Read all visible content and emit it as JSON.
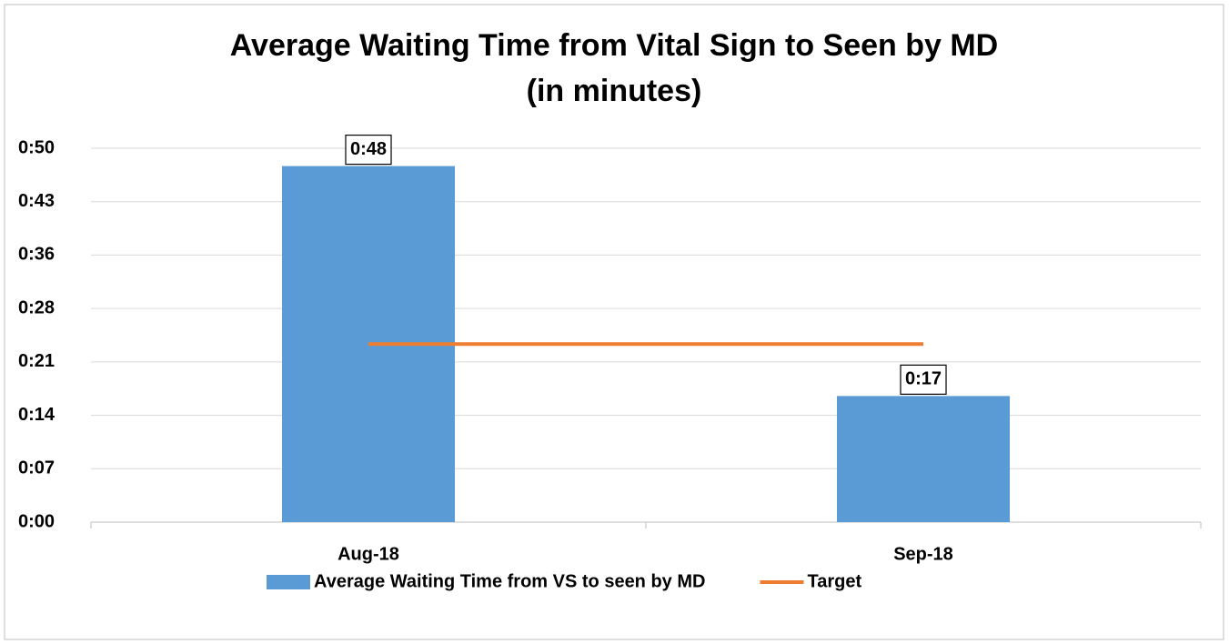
{
  "chart_data": {
    "type": "bar",
    "title": "Average Waiting Time from Vital Sign to Seen by MD",
    "subtitle": "(in minutes)",
    "categories": [
      "Aug-18",
      "Sep-18"
    ],
    "series": [
      {
        "name": "Average Waiting Time from VS to seen by MD",
        "type": "bar",
        "color": "#5b9bd5",
        "values": [
          48,
          17
        ],
        "value_labels": [
          "0:48",
          "0:17"
        ]
      },
      {
        "name": "Target",
        "type": "line",
        "color": "#ed7d31",
        "values": [
          24,
          24
        ]
      }
    ],
    "ylim": [
      0,
      50.4
    ],
    "yticks": [
      {
        "value": 0,
        "label": "0:00"
      },
      {
        "value": 7.2,
        "label": "0:07"
      },
      {
        "value": 14.4,
        "label": "0:14"
      },
      {
        "value": 21.6,
        "label": "0:21"
      },
      {
        "value": 28.8,
        "label": "0:28"
      },
      {
        "value": 36,
        "label": "0:36"
      },
      {
        "value": 43.2,
        "label": "0:43"
      },
      {
        "value": 50.4,
        "label": "0:50"
      }
    ],
    "grid": true,
    "legend": "bottom"
  }
}
